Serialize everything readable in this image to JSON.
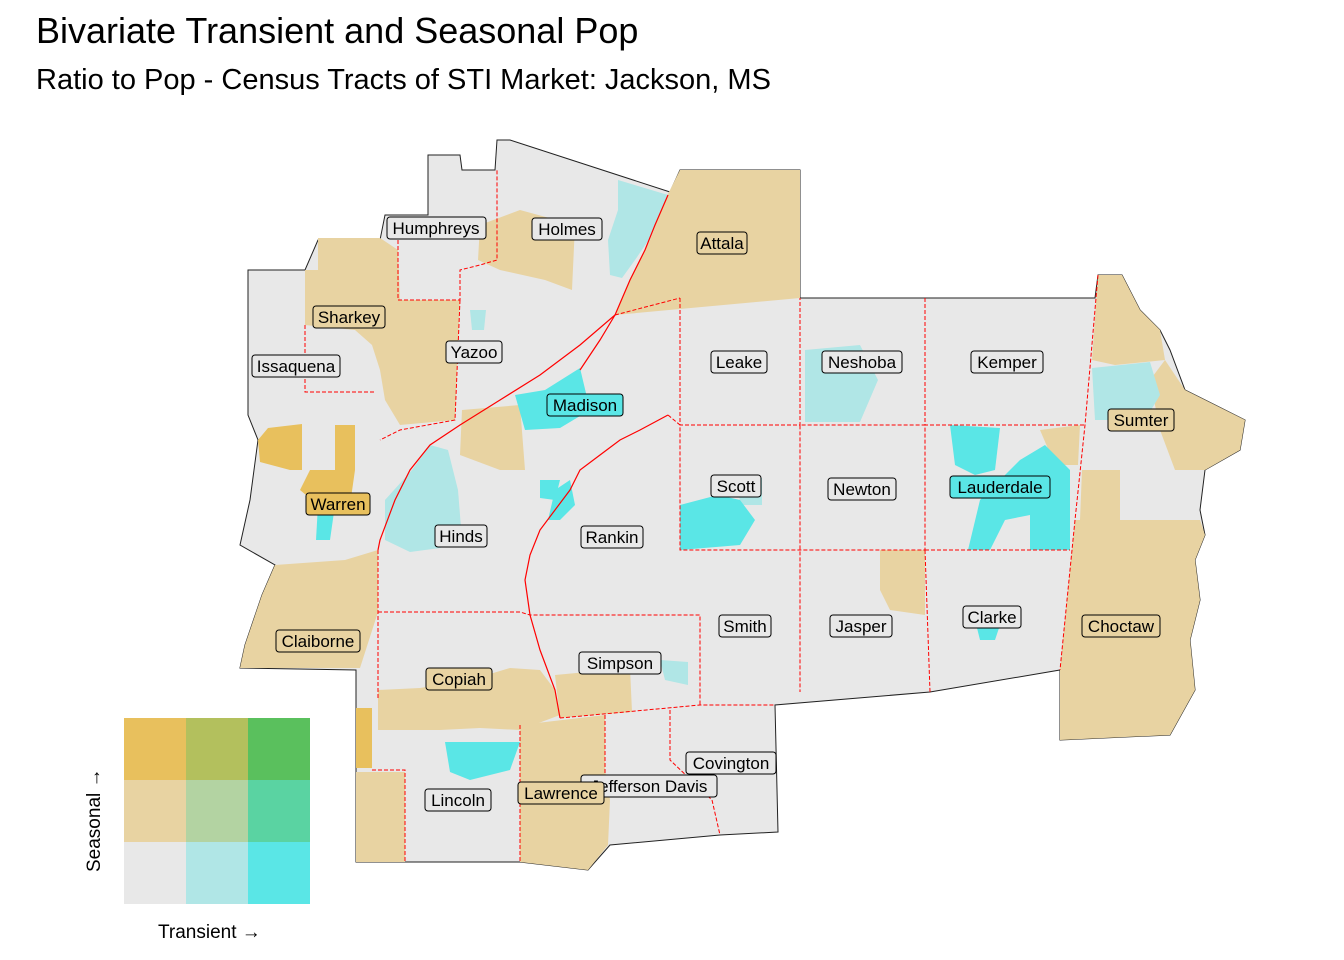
{
  "title": "Bivariate Transient and Seasonal Pop",
  "subtitle": "Ratio to Pop - Census Tracts of STI Market: Jackson, MS",
  "palette": {
    "low_low": "#e8e8e8",
    "mid_transient_low_seasonal": "#b0e6e6",
    "high_transient_low_seasonal": "#5ae6e6",
    "low_transient_mid_seasonal": "#e8d3a2",
    "mid_mid": "#b3d3a2",
    "high_transient_mid_seasonal": "#5ad3a2",
    "low_transient_high_seasonal": "#e8c05d",
    "mid_transient_high_seasonal": "#b3c05d",
    "high_high": "#5ac05d",
    "county_border": "#ff0000"
  },
  "counties": [
    {
      "name": "Humphreys"
    },
    {
      "name": "Holmes"
    },
    {
      "name": "Attala"
    },
    {
      "name": "Sharkey"
    },
    {
      "name": "Yazoo"
    },
    {
      "name": "Issaquena"
    },
    {
      "name": "Leake"
    },
    {
      "name": "Neshoba"
    },
    {
      "name": "Kemper"
    },
    {
      "name": "Madison"
    },
    {
      "name": "Sumter"
    },
    {
      "name": "Scott"
    },
    {
      "name": "Newton"
    },
    {
      "name": "Lauderdale"
    },
    {
      "name": "Warren"
    },
    {
      "name": "Hinds"
    },
    {
      "name": "Rankin"
    },
    {
      "name": "Smith"
    },
    {
      "name": "Jasper"
    },
    {
      "name": "Clarke"
    },
    {
      "name": "Choctaw"
    },
    {
      "name": "Claiborne"
    },
    {
      "name": "Simpson"
    },
    {
      "name": "Copiah"
    },
    {
      "name": "Covington"
    },
    {
      "name": "Jefferson Davis"
    },
    {
      "name": "Lawrence"
    },
    {
      "name": "Lincoln"
    }
  ],
  "legend": {
    "x_label": "Transient →",
    "y_label": "Seasonal →",
    "grid": [
      [
        "#e8c05d",
        "#b3c05d",
        "#5ac05d"
      ],
      [
        "#e8d3a2",
        "#b3d3a2",
        "#5ad3a2"
      ],
      [
        "#e8e8e8",
        "#b0e6e6",
        "#5ae6e6"
      ]
    ]
  }
}
